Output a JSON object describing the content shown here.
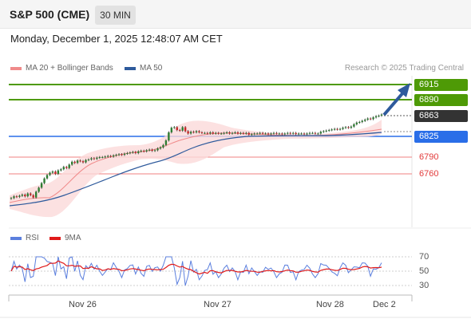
{
  "header": {
    "instrument": "S&P 500 (CME)",
    "timeframe": "30 MIN"
  },
  "datetime": "Monday, December 1, 2025 12:48:07 AM CET",
  "legend": {
    "bb_label": "MA 20 + Bollinger Bands",
    "bb_color": "#f08a8a",
    "ma50_label": "MA 50",
    "ma50_color": "#2e5a9c"
  },
  "credit": "Research © 2025 Trading Central",
  "levels": {
    "r2": {
      "label": "6915",
      "color": "#4e9a06"
    },
    "r1": {
      "label": "6890",
      "color": "#4e9a06"
    },
    "last": {
      "label": "6863",
      "color": "#333333"
    },
    "pivot": {
      "label": "6825",
      "color": "#2a6ee8"
    },
    "s1": {
      "label": "6790",
      "color": "#e23b3b"
    },
    "s2": {
      "label": "6760",
      "color": "#e23b3b"
    }
  },
  "rsi_legend": {
    "rsi_label": "RSI",
    "rsi_color": "#5b7fde",
    "ma_label": "9MA",
    "ma_color": "#e01a1a"
  },
  "rsi_ticks": [
    "70",
    "50",
    "30"
  ],
  "date_ticks": [
    "Nov 26",
    "Nov 27",
    "Nov 28",
    "Dec 2"
  ],
  "chart_data": {
    "type": "candlestick",
    "interval": "30 MIN",
    "xlabels": [
      "Nov 26",
      "Nov 27",
      "Nov 28",
      "Dec 2"
    ],
    "price_levels": {
      "resistance_2": 6915,
      "resistance_1": 6890,
      "last": 6863,
      "pivot": 6825,
      "support_1": 6790,
      "support_2": 6760
    },
    "close_series": [
      6718,
      6721,
      6720,
      6722,
      6724,
      6721,
      6726,
      6723,
      6719,
      6729,
      6736,
      6744,
      6752,
      6758,
      6762,
      6764,
      6760,
      6766,
      6768,
      6772,
      6770,
      6776,
      6781,
      6779,
      6783,
      6782,
      6780,
      6784,
      6785,
      6787,
      6786,
      6788,
      6789,
      6789,
      6790,
      6791,
      6790,
      6792,
      6793,
      6794,
      6793,
      6795,
      6796,
      6797,
      6798,
      6796,
      6799,
      6800,
      6799,
      6801,
      6802,
      6800,
      6801,
      6804,
      6806,
      6810,
      6818,
      6832,
      6840,
      6841,
      6836,
      6835,
      6841,
      6834,
      6830,
      6833,
      6832,
      6834,
      6832,
      6831,
      6831,
      6830,
      6832,
      6830,
      6831,
      6830,
      6830,
      6831,
      6832,
      6830,
      6831,
      6832,
      6830,
      6831,
      6830,
      6831,
      6828,
      6829,
      6830,
      6830,
      6831,
      6830,
      6830,
      6829,
      6830,
      6831,
      6830,
      6830,
      6829,
      6830,
      6831,
      6830,
      6831,
      6829,
      6830,
      6830,
      6829,
      6830,
      6831,
      6831,
      6830,
      6830,
      6833,
      6834,
      6835,
      6836,
      6837,
      6838,
      6837,
      6838,
      6840,
      6841,
      6840,
      6842,
      6846,
      6849,
      6850,
      6852,
      6854,
      6856,
      6855,
      6858,
      6860,
      6861,
      6863
    ],
    "rsi": {
      "ticks": [
        30,
        50,
        70
      ]
    },
    "projection": "up toward 6915"
  }
}
